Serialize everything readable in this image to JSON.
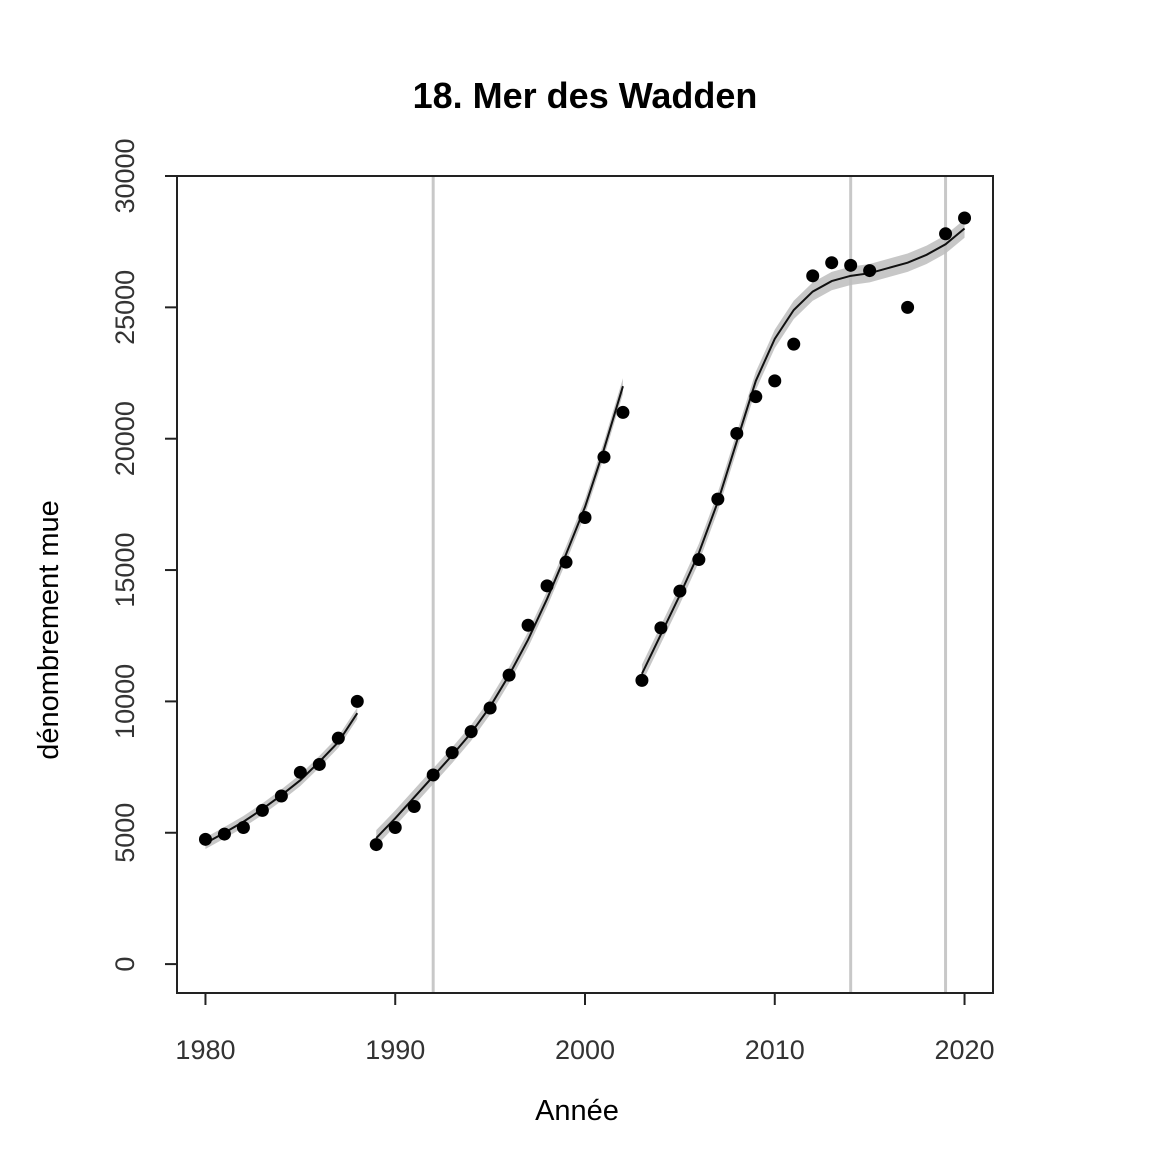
{
  "chart_data": {
    "type": "scatter",
    "title": "18. Mer des Wadden",
    "xlabel": "Année",
    "ylabel": "dénombrement mue",
    "xlim": [
      1978.5,
      2021.5
    ],
    "ylim": [
      -1100,
      30000
    ],
    "x_ticks": [
      "1980",
      "1990",
      "2000",
      "2010",
      "2020"
    ],
    "y_ticks": [
      "0",
      "5000",
      "10000",
      "15000",
      "20000",
      "25000",
      "30000"
    ],
    "vertical_lines": [
      1992,
      2014,
      2019
    ],
    "points": [
      {
        "x": 1980,
        "y": 4750
      },
      {
        "x": 1981,
        "y": 4950
      },
      {
        "x": 1982,
        "y": 5200
      },
      {
        "x": 1983,
        "y": 5850
      },
      {
        "x": 1984,
        "y": 6400
      },
      {
        "x": 1985,
        "y": 7300
      },
      {
        "x": 1986,
        "y": 7600
      },
      {
        "x": 1987,
        "y": 8600
      },
      {
        "x": 1988,
        "y": 10000
      },
      {
        "x": 1989,
        "y": 4550
      },
      {
        "x": 1990,
        "y": 5200
      },
      {
        "x": 1991,
        "y": 6000
      },
      {
        "x": 1992,
        "y": 7200
      },
      {
        "x": 1993,
        "y": 8050
      },
      {
        "x": 1994,
        "y": 8850
      },
      {
        "x": 1995,
        "y": 9750
      },
      {
        "x": 1996,
        "y": 11000
      },
      {
        "x": 1997,
        "y": 12900
      },
      {
        "x": 1998,
        "y": 14400
      },
      {
        "x": 1999,
        "y": 15300
      },
      {
        "x": 2000,
        "y": 17000
      },
      {
        "x": 2001,
        "y": 19300
      },
      {
        "x": 2002,
        "y": 21000
      },
      {
        "x": 2003,
        "y": 10800
      },
      {
        "x": 2004,
        "y": 12800
      },
      {
        "x": 2005,
        "y": 14200
      },
      {
        "x": 2006,
        "y": 15400
      },
      {
        "x": 2007,
        "y": 17700
      },
      {
        "x": 2008,
        "y": 20200
      },
      {
        "x": 2009,
        "y": 21600
      },
      {
        "x": 2010,
        "y": 22200
      },
      {
        "x": 2011,
        "y": 23600
      },
      {
        "x": 2012,
        "y": 26200
      },
      {
        "x": 2013,
        "y": 26700
      },
      {
        "x": 2014,
        "y": 26600
      },
      {
        "x": 2015,
        "y": 26400
      },
      {
        "x": 2017,
        "y": 25000
      },
      {
        "x": 2019,
        "y": 27800
      },
      {
        "x": 2020,
        "y": 28400
      }
    ],
    "series": [
      {
        "x": [
          1980,
          1981,
          1982,
          1983,
          1984,
          1985,
          1986,
          1987,
          1988
        ],
        "fit": [
          4600,
          5000,
          5420,
          5900,
          6430,
          7000,
          7700,
          8450,
          9550
        ],
        "band": 220
      },
      {
        "x": [
          1989,
          1990,
          1991,
          1992,
          1993,
          1994,
          1995,
          1996,
          1997,
          1998,
          1999,
          2000,
          2001,
          2002
        ],
        "fit": [
          4800,
          5550,
          6350,
          7150,
          7950,
          8800,
          9800,
          11000,
          12350,
          13900,
          15600,
          17400,
          19600,
          22000
        ],
        "band": 300
      },
      {
        "x": [
          2003,
          2004,
          2005,
          2006,
          2007,
          2008,
          2009,
          2010,
          2011,
          2012,
          2013,
          2014,
          2015,
          2016,
          2017,
          2018,
          2019,
          2020
        ],
        "fit": [
          11050,
          12550,
          14050,
          15650,
          17600,
          19900,
          22200,
          23800,
          24900,
          25600,
          26000,
          26200,
          26300,
          26500,
          26700,
          27000,
          27400,
          28000
        ],
        "band": 350
      }
    ]
  }
}
